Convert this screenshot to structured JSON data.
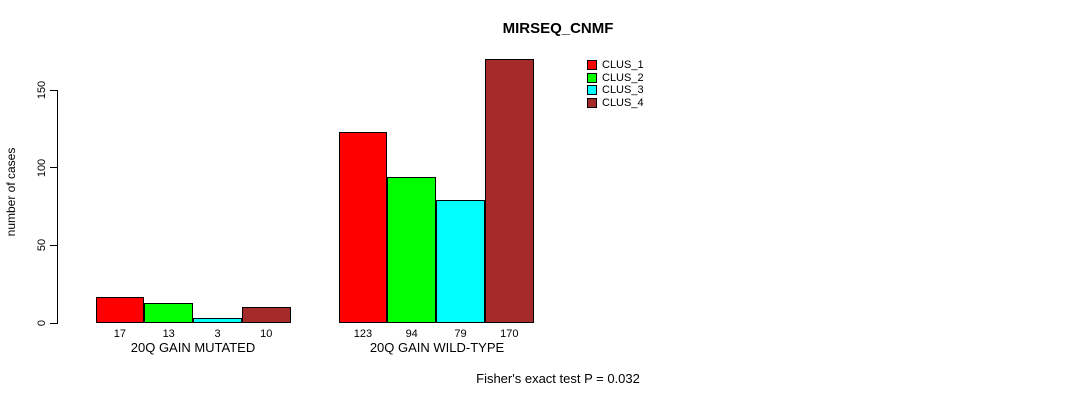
{
  "title": "MIRSEQ_CNMF",
  "annotation": "Fisher's exact test P = 0.032",
  "chart_data": {
    "type": "bar",
    "title": "MIRSEQ_CNMF",
    "xlabel": "",
    "ylabel": "number of cases",
    "categories": [
      "20Q GAIN MUTATED",
      "20Q GAIN WILD-TYPE"
    ],
    "series": [
      {
        "name": "CLUS_1",
        "color": "#FF0000",
        "values": [
          17,
          123
        ]
      },
      {
        "name": "CLUS_2",
        "color": "#00FF00",
        "values": [
          13,
          94
        ]
      },
      {
        "name": "CLUS_3",
        "color": "#00FFFF",
        "values": [
          3,
          79
        ]
      },
      {
        "name": "CLUS_4",
        "color": "#A52A2A",
        "values": [
          10,
          170
        ]
      }
    ],
    "bar_value_labels": [
      [
        17,
        13,
        3,
        10
      ],
      [
        123,
        94,
        79,
        170
      ]
    ],
    "yticks": [
      0,
      50,
      100,
      150
    ],
    "ylim": [
      0,
      175
    ],
    "grid": false,
    "legend_position": "top-right",
    "annotation": "Fisher's exact test P = 0.032",
    "bar_border_color": "#000000",
    "background_color": "#FFFFFF"
  }
}
